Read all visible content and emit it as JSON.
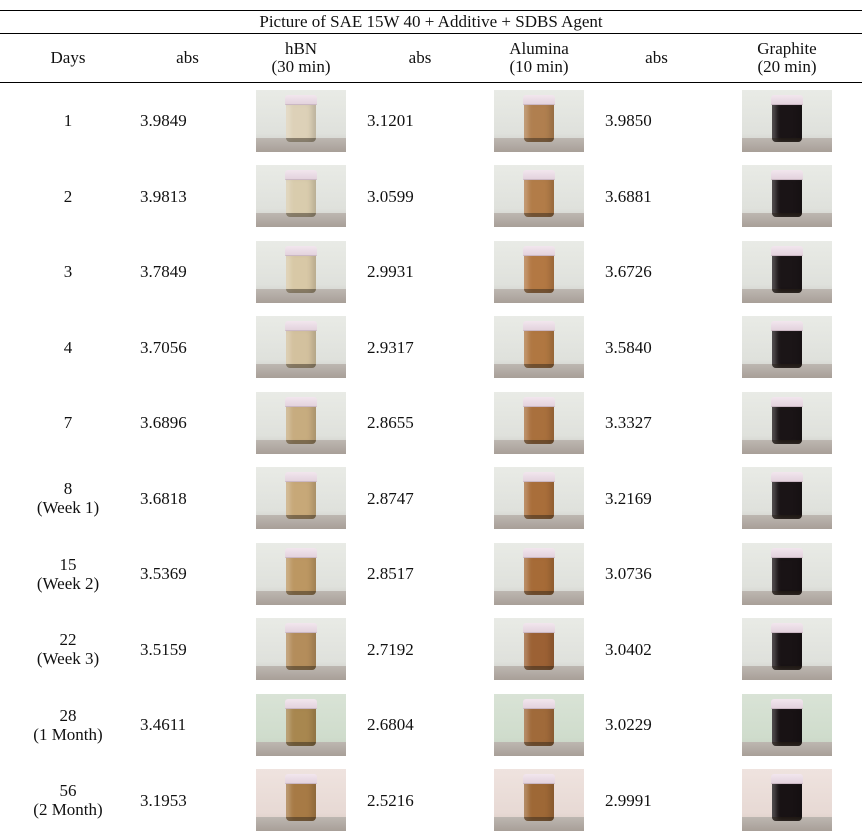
{
  "title": "Picture of SAE 15W 40 + Additive + SDBS Agent",
  "headers": {
    "days": "Days",
    "abs1": "abs",
    "hbn": [
      "hBN",
      "(30 min)"
    ],
    "abs2": "abs",
    "alumina": [
      "Alumina",
      "(10 min)"
    ],
    "abs3": "abs",
    "graphite": [
      "Graphite",
      "(20 min)"
    ]
  },
  "rows": [
    {
      "day": [
        "1"
      ],
      "hbn_abs": "3.9849",
      "alumina_abs": "3.1201",
      "graphite_abs": "3.9850",
      "hbn_color": "#ddd1b8",
      "alumina_color": "#b07f4f",
      "graphite_color": "#1a1416"
    },
    {
      "day": [
        "2"
      ],
      "hbn_abs": "3.9813",
      "alumina_abs": "3.0599",
      "graphite_abs": "3.6881",
      "hbn_color": "#d9ccad",
      "alumina_color": "#b27c48",
      "graphite_color": "#1a1416"
    },
    {
      "day": [
        "3"
      ],
      "hbn_abs": "3.7849",
      "alumina_abs": "2.9931",
      "graphite_abs": "3.6726",
      "hbn_color": "#d8c8a6",
      "alumina_color": "#b37843",
      "graphite_color": "#1b1517"
    },
    {
      "day": [
        "4"
      ],
      "hbn_abs": "3.7056",
      "alumina_abs": "2.9317",
      "graphite_abs": "3.5840",
      "hbn_color": "#d3c19e",
      "alumina_color": "#b07741",
      "graphite_color": "#1b1517"
    },
    {
      "day": [
        "7"
      ],
      "hbn_abs": "3.6896",
      "alumina_abs": "2.8655",
      "graphite_abs": "3.3327",
      "hbn_color": "#c7ac7f",
      "alumina_color": "#a9703d",
      "graphite_color": "#1a1416"
    },
    {
      "day": [
        "8",
        "(Week 1)"
      ],
      "hbn_abs": "3.6818",
      "alumina_abs": "2.8747",
      "graphite_abs": "3.2169",
      "hbn_color": "#c7a878",
      "alumina_color": "#a96e3a",
      "graphite_color": "#1a1416"
    },
    {
      "day": [
        "15",
        "(Week 2)"
      ],
      "hbn_abs": "3.5369",
      "alumina_abs": "2.8517",
      "graphite_abs": "3.0736",
      "hbn_color": "#bc9762",
      "alumina_color": "#a66b37",
      "graphite_color": "#191315"
    },
    {
      "day": [
        "22",
        "(Week 3)"
      ],
      "hbn_abs": "3.5159",
      "alumina_abs": "2.7192",
      "graphite_abs": "3.0402",
      "hbn_color": "#b48d5b",
      "alumina_color": "#9c6134",
      "graphite_color": "#191315"
    },
    {
      "day": [
        "28",
        "(1 Month)"
      ],
      "hbn_abs": "3.4611",
      "alumina_abs": "2.6804",
      "graphite_abs": "3.0229",
      "hbn_color": "#a8874f",
      "alumina_color": "#a06a3a",
      "graphite_color": "#181214"
    },
    {
      "day": [
        "56",
        "(2 Month)"
      ],
      "hbn_abs": "3.1953",
      "alumina_abs": "2.5216",
      "graphite_abs": "2.9991",
      "hbn_color": "#a77a45",
      "alumina_color": "#9e6836",
      "graphite_color": "#181214"
    }
  ]
}
